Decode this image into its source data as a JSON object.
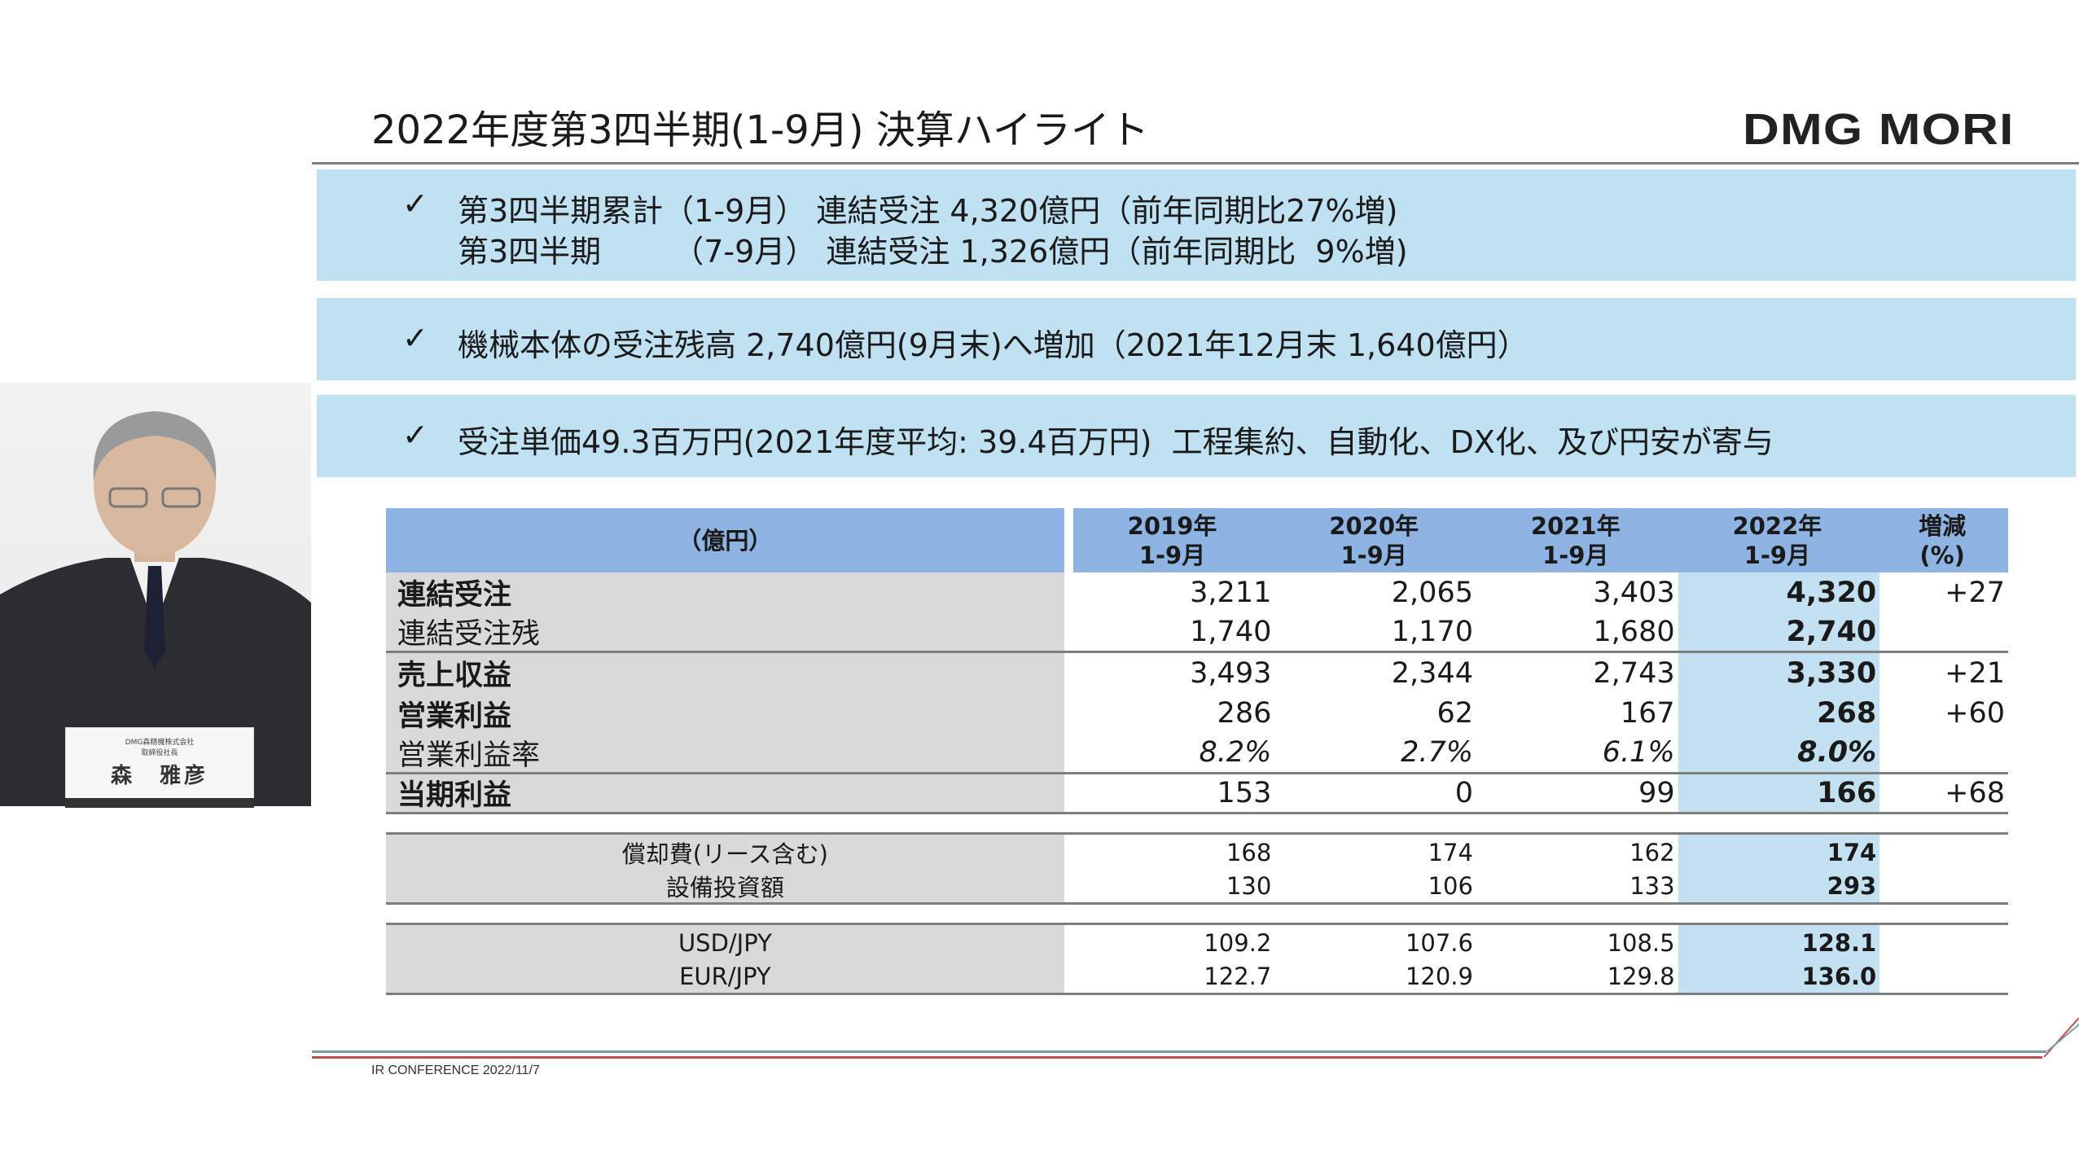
{
  "title": "2022年度第3四半期(1-9月) 決算ハイライト",
  "logo": "DMG MORI",
  "highlights": [
    {
      "check": "✓",
      "lines": [
        "第3四半期累計（1-9月） 連結受注 4,320億円（前年同期比27%増)",
        "第3四半期　　 （7-9月） 連結受注 1,326億円（前年同期比  9%増)"
      ]
    },
    {
      "check": "✓",
      "lines": [
        "機械本体の受注残高 2,740億円(9月末)へ増加（2021年12月末 1,640億円）"
      ]
    },
    {
      "check": "✓",
      "lines": [
        "受注単価49.3百万円(2021年度平均: 39.4百万円)  工程集約、自動化、DX化、及び円安が寄与"
      ]
    }
  ],
  "table": {
    "unit": "（億円）",
    "headers": [
      "2019年\n1-9月",
      "2020年\n1-9月",
      "2021年\n1-9月",
      "2022年\n1-9月",
      "増減\n(%)"
    ],
    "rows": [
      {
        "label": "連結受注",
        "v": [
          "3,211",
          "2,065",
          "3,403",
          "4,320",
          "+27"
        ]
      },
      {
        "label": "連結受注残",
        "v": [
          "1,740",
          "1,170",
          "1,680",
          "2,740",
          ""
        ]
      },
      {
        "label": "売上収益",
        "v": [
          "3,493",
          "2,344",
          "2,743",
          "3,330",
          "+21"
        ]
      },
      {
        "label": "営業利益",
        "v": [
          "286",
          "62",
          "167",
          "268",
          "+60"
        ]
      },
      {
        "label": "営業利益率",
        "v": [
          "8.2%",
          "2.7%",
          "6.1%",
          "8.0%",
          ""
        ]
      },
      {
        "label": "当期利益",
        "v": [
          "153",
          "0",
          "99",
          "166",
          "+68"
        ]
      }
    ],
    "rows2": [
      {
        "label": "償却費(リース含む)",
        "v": [
          "168",
          "174",
          "162",
          "174"
        ]
      },
      {
        "label": "設備投資額",
        "v": [
          "130",
          "106",
          "133",
          "293"
        ]
      }
    ],
    "rows3": [
      {
        "label": "USD/JPY",
        "v": [
          "109.2",
          "107.6",
          "108.5",
          "128.1"
        ]
      },
      {
        "label": "EUR/JPY",
        "v": [
          "122.7",
          "120.9",
          "129.8",
          "136.0"
        ]
      }
    ]
  },
  "footer": "IR CONFERENCE 2022/11/7",
  "nameplate": {
    "company": "DMG森精機株式会社",
    "position": "取締役社長",
    "name": "森　雅彦"
  },
  "colors": {
    "box": "#bfe1f2",
    "header": "#8db4e2",
    "highlight": "#c3e1f1",
    "label_bg": "#d9d9d9"
  }
}
